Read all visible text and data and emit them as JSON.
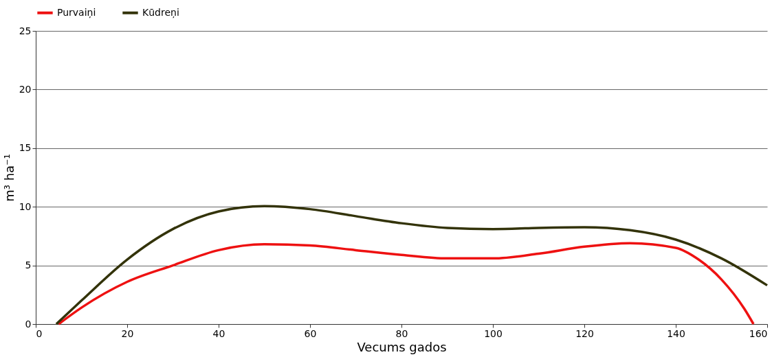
{
  "chart_data": {
    "type": "line",
    "xlabel": "Vecums gados",
    "ylabel": "m³ ha⁻¹",
    "xlim": [
      0,
      160
    ],
    "xticks": [
      0,
      20,
      40,
      60,
      80,
      100,
      120,
      140,
      160
    ],
    "ylim": [
      0,
      25
    ],
    "yticks": [
      0,
      5,
      10,
      15,
      20,
      25
    ],
    "grid": "y",
    "legend": "top",
    "line_style": "solid",
    "marker": "none",
    "series": [
      {
        "name": "Purvaiņi",
        "color": "#ee1111",
        "x": [
          5,
          10,
          20,
          30,
          40,
          50,
          60,
          70,
          80,
          90,
          100,
          110,
          120,
          130,
          140,
          145,
          150,
          155,
          157
        ],
        "values": [
          0,
          1.4,
          3.6,
          5.0,
          6.3,
          6.8,
          6.7,
          6.3,
          5.9,
          5.6,
          5.6,
          6.0,
          6.6,
          6.9,
          6.5,
          5.5,
          3.8,
          1.3,
          0
        ]
      },
      {
        "name": "Kūdreņi",
        "color": "#33330a",
        "x": [
          4.5,
          10,
          20,
          30,
          40,
          50,
          60,
          70,
          80,
          90,
          100,
          110,
          120,
          130,
          140,
          150,
          160
        ],
        "values": [
          0,
          2.0,
          5.5,
          8.1,
          9.6,
          10.05,
          9.8,
          9.2,
          8.6,
          8.2,
          8.1,
          8.2,
          8.25,
          8.0,
          7.2,
          5.6,
          3.3
        ]
      }
    ]
  }
}
